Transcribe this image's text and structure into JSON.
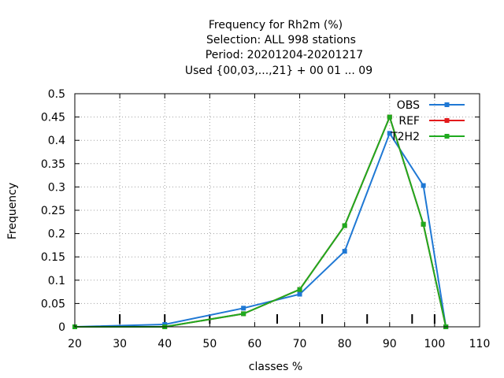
{
  "chart_data": {
    "type": "line",
    "title_lines": [
      "Frequency  for Rh2m (%)",
      "Selection: ALL    998 stations",
      "Period: 20201204-20201217",
      "Used {00,03,...,21} + 00 01 ... 09"
    ],
    "xlabel": "classes %",
    "ylabel": "Frequency",
    "xlim": [
      20,
      110
    ],
    "ylim": [
      0,
      0.5
    ],
    "xticks": [
      20,
      30,
      40,
      50,
      60,
      70,
      80,
      90,
      100,
      110
    ],
    "yticks": [
      0,
      0.05,
      0.1,
      0.15,
      0.2,
      0.25,
      0.3,
      0.35,
      0.4,
      0.45,
      0.5
    ],
    "xtick_labels": [
      "20",
      "30",
      "40",
      "50",
      "60",
      "70",
      "80",
      "90",
      "100",
      "110"
    ],
    "ytick_labels": [
      "0",
      "0.05",
      "0.1",
      "0.15",
      "0.2",
      "0.25",
      "0.3",
      "0.35",
      "0.4",
      "0.45",
      "0.5"
    ],
    "class_markers": [
      30,
      40,
      50,
      65,
      75,
      85,
      95,
      100
    ],
    "grid": true,
    "legend_position": "top-right",
    "series": [
      {
        "name": "OBS",
        "color": "#1f78d4",
        "x": [
          20,
          40,
          57.5,
          70,
          80,
          90,
          97.5,
          102.5
        ],
        "y": [
          0.0,
          0.005,
          0.04,
          0.07,
          0.162,
          0.415,
          0.303,
          0.0
        ]
      },
      {
        "name": "REF",
        "color": "#e31a1c",
        "x": [
          20,
          40,
          57.5,
          70,
          80,
          90,
          97.5,
          102.5
        ],
        "y": [
          0.0,
          0.0,
          0.028,
          0.08,
          0.217,
          0.45,
          0.22,
          0.0
        ]
      },
      {
        "name": "T2H2",
        "color": "#1faa1f",
        "x": [
          20,
          40,
          57.5,
          70,
          80,
          90,
          97.5,
          102.5
        ],
        "y": [
          0.0,
          0.0,
          0.028,
          0.08,
          0.217,
          0.45,
          0.22,
          0.0
        ]
      }
    ]
  }
}
